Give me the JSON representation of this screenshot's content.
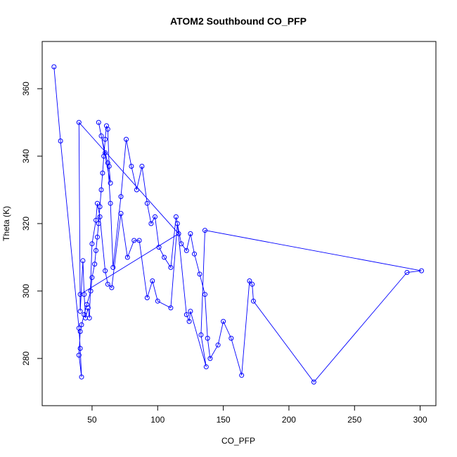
{
  "chart_data": {
    "type": "scatter",
    "title": "ATOM2 Southbound CO_PFP",
    "xlabel": "CO_PFP",
    "ylabel": "Theta (K)",
    "xlim": [
      12,
      312
    ],
    "ylim": [
      266,
      374
    ],
    "xticks": [
      50,
      100,
      150,
      200,
      250,
      300
    ],
    "yticks": [
      280,
      300,
      320,
      340,
      360
    ],
    "grid": false,
    "legend": "none",
    "line_color": "#0000ff",
    "marker": "open-circle",
    "series": [
      {
        "x": [
          21,
          26,
          40,
          41,
          42,
          40,
          41,
          42,
          44,
          46,
          49,
          50,
          52,
          53,
          54,
          55,
          56,
          57,
          58,
          59,
          60,
          61,
          62,
          63,
          64,
          55,
          57,
          60,
          62,
          64,
          66,
          72,
          76,
          80,
          84,
          88,
          92,
          95,
          98,
          101,
          105,
          110,
          114,
          118,
          122,
          125,
          128,
          132,
          136,
          138,
          140,
          146,
          150,
          156,
          164,
          170,
          172,
          173,
          219,
          290,
          301,
          136,
          133,
          137,
          125,
          124,
          122,
          115,
          110,
          100,
          96,
          92,
          86,
          82,
          77,
          72,
          65,
          62,
          60,
          56,
          54,
          53,
          50,
          48,
          47,
          45,
          44,
          43,
          41,
          40,
          116,
          41
        ],
        "y": [
          366.5,
          344.5,
          289,
          283,
          274.5,
          281,
          288,
          290,
          293,
          296,
          300,
          304,
          308,
          312,
          316,
          320,
          325,
          330,
          335,
          340,
          345,
          349,
          348,
          337,
          332,
          350,
          346,
          341,
          338,
          326,
          307,
          328,
          345,
          337,
          330,
          337,
          326,
          320,
          322,
          313,
          310,
          307,
          322,
          314,
          312,
          317,
          311,
          305,
          299,
          286,
          280,
          284,
          291,
          286,
          275,
          303,
          302,
          297,
          273,
          305.5,
          306,
          318,
          287,
          277.5,
          294,
          291,
          293,
          320,
          295,
          297,
          303,
          298,
          315,
          315,
          310,
          323,
          301,
          302,
          306,
          322,
          326,
          321,
          314,
          292,
          295,
          292,
          299,
          309,
          294,
          350,
          317,
          299
        ]
      }
    ]
  }
}
